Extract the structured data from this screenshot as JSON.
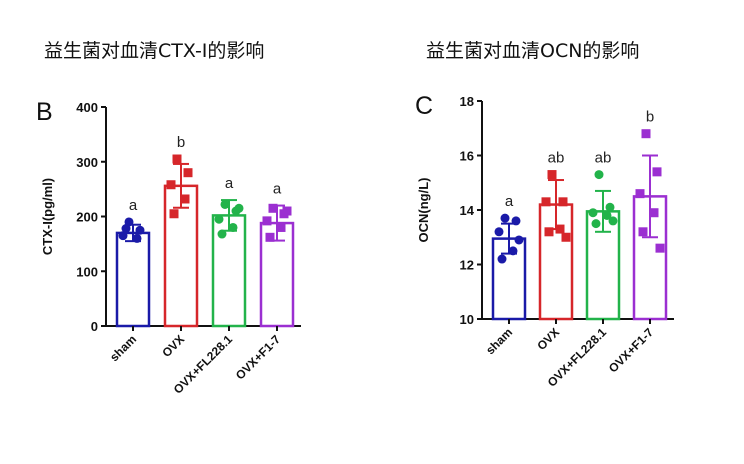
{
  "charts": [
    {
      "panel_label": "B",
      "heading": "益生菌对血清CTX-I的影响"
    },
    {
      "panel_label": "C",
      "heading": "益生菌对血清OCN的影响"
    }
  ],
  "chart_data": [
    {
      "type": "bar",
      "title": "益生菌对血清CTX-I的影响",
      "ylabel": "CTX-I(pg/ml)",
      "xlabel": "",
      "ylim": [
        0,
        400
      ],
      "yticks": [
        0,
        100,
        200,
        300,
        400
      ],
      "categories": [
        "sham",
        "OVX",
        "OVX+FL228.1",
        "OVX+F1-7"
      ],
      "values": [
        170,
        256,
        202,
        188
      ],
      "errors": [
        15,
        40,
        28,
        32
      ],
      "letters": [
        "a",
        "b",
        "a",
        "a"
      ],
      "colors": [
        "#1a1aa8",
        "#d6262a",
        "#22b34a",
        "#9b2fd1"
      ],
      "markers": [
        "circle",
        "square",
        "circle",
        "square"
      ],
      "points": [
        [
          190,
          175,
          165,
          160,
          178
        ],
        [
          305,
          280,
          258,
          232,
          205
        ],
        [
          222,
          210,
          195,
          180,
          168,
          215
        ],
        [
          215,
          205,
          192,
          180,
          162,
          210
        ]
      ]
    },
    {
      "type": "bar",
      "title": "益生菌对血清OCN的影响",
      "ylabel": "OCN(ng/L)",
      "xlabel": "",
      "ylim": [
        10,
        18
      ],
      "yticks": [
        10,
        12,
        14,
        16,
        18
      ],
      "categories": [
        "sham",
        "OVX",
        "OVX+FL228.1",
        "OVX+F1-7"
      ],
      "values": [
        12.95,
        14.2,
        13.95,
        14.5
      ],
      "errors": [
        0.55,
        0.9,
        0.75,
        1.5
      ],
      "letters": [
        "a",
        "ab",
        "ab",
        "b"
      ],
      "colors": [
        "#1a1aa8",
        "#d6262a",
        "#22b34a",
        "#9b2fd1"
      ],
      "markers": [
        "circle",
        "square",
        "circle",
        "square"
      ],
      "points": [
        [
          13.7,
          13.6,
          13.2,
          12.5,
          12.2,
          12.9
        ],
        [
          15.3,
          14.3,
          14.3,
          13.3,
          13.2,
          13.0
        ],
        [
          15.3,
          14.1,
          13.9,
          13.8,
          13.5,
          13.6
        ],
        [
          16.8,
          15.4,
          14.6,
          13.9,
          13.2,
          12.6
        ]
      ]
    }
  ]
}
